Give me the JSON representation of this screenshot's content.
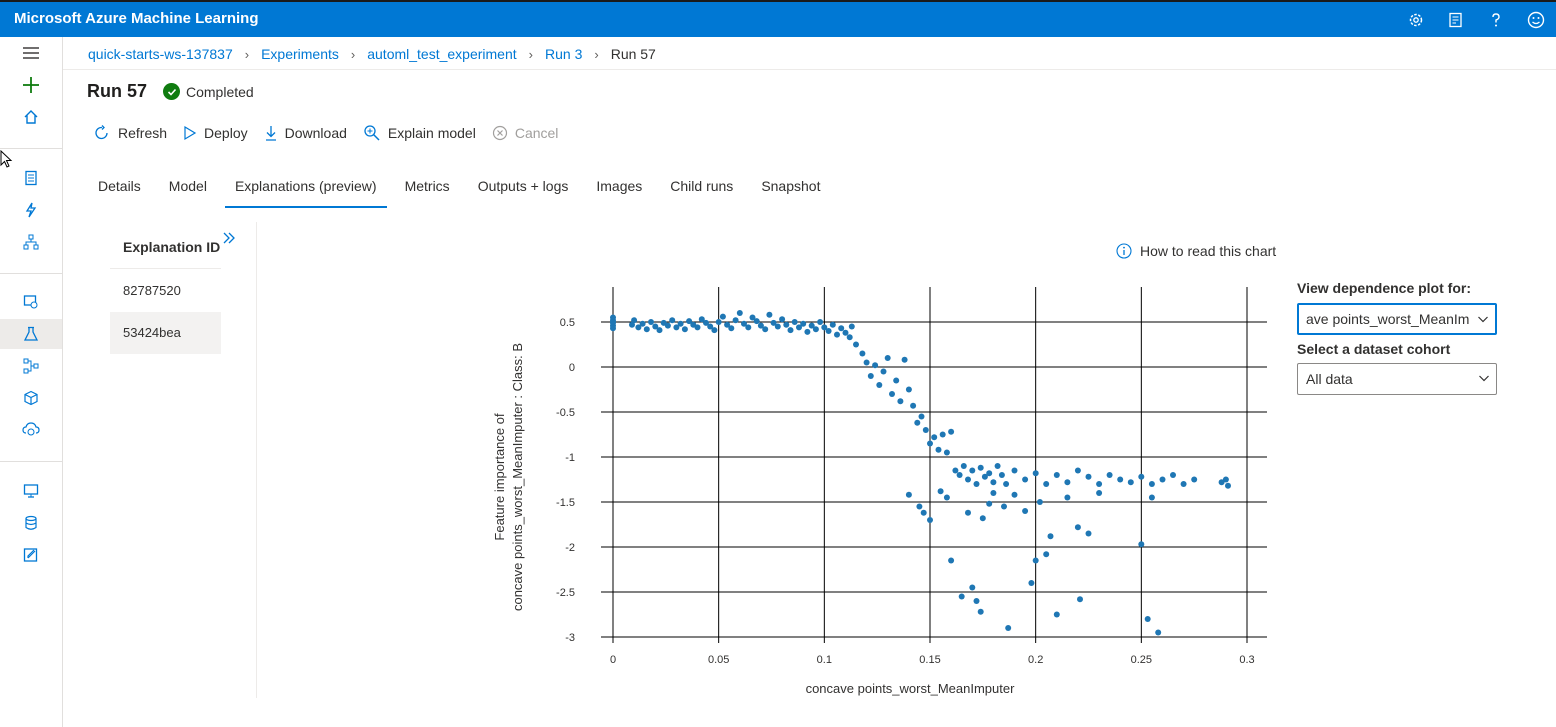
{
  "app": {
    "title": "Microsoft Azure Machine Learning"
  },
  "topbar": {
    "icons": [
      "gear-icon",
      "feedback-list-icon",
      "help-icon",
      "smiley-icon"
    ]
  },
  "leftnav": {
    "items": [
      "hamburger-icon",
      "plus-icon",
      "home-icon",
      "notebook-icon",
      "automl-icon",
      "designer-icon",
      "datasets-icon",
      "experiments-icon",
      "pipelines-icon",
      "models-icon",
      "endpoints-icon",
      "compute-icon",
      "datastores-icon",
      "labeling-icon"
    ],
    "active": "experiments-icon"
  },
  "breadcrumb": {
    "items": [
      "quick-starts-ws-137837",
      "Experiments",
      "automl_test_experiment",
      "Run 3"
    ],
    "current": "Run 57"
  },
  "run": {
    "title": "Run 57",
    "status": "Completed"
  },
  "toolbar": {
    "refresh": "Refresh",
    "deploy": "Deploy",
    "download": "Download",
    "explain": "Explain model",
    "cancel": "Cancel"
  },
  "tabs": [
    "Details",
    "Model",
    "Explanations (preview)",
    "Metrics",
    "Outputs + logs",
    "Images",
    "Child runs",
    "Snapshot"
  ],
  "active_tab": "Explanations (preview)",
  "explanations": {
    "header": "Explanation ID",
    "rows": [
      "82787520",
      "53424bea"
    ],
    "selected": "53424bea"
  },
  "how_to_read": "How to read this chart",
  "dependence": {
    "label": "View dependence plot for:",
    "value": "ave points_worst_MeanIm",
    "cohort_label": "Select a dataset cohort",
    "cohort_value": "All data"
  },
  "colors": {
    "accent": "#0078d4",
    "success": "#107c10",
    "point": "#1f77b4"
  },
  "chart_data": {
    "type": "scatter",
    "xlabel": "concave points_worst_MeanImputer",
    "ylabel_line1": "Feature importance of",
    "ylabel_line2": "concave points_worst_MeanImputer : Class: B",
    "xlim": [
      0,
      0.3
    ],
    "ylim": [
      -3,
      0.5
    ],
    "xticks": [
      "0",
      "0.05",
      "0.1",
      "0.15",
      "0.2",
      "0.25",
      "0.3"
    ],
    "yticks": [
      "0.5",
      "0",
      "-0.5",
      "-1",
      "-1.5",
      "-2",
      "-2.5",
      "-3"
    ],
    "grid": true,
    "points": [
      [
        0.0,
        0.55
      ],
      [
        0.0,
        0.52
      ],
      [
        0.0,
        0.49
      ],
      [
        0.0,
        0.46
      ],
      [
        0.0,
        0.43
      ],
      [
        0.0,
        0.5
      ],
      [
        0.009,
        0.47
      ],
      [
        0.01,
        0.52
      ],
      [
        0.012,
        0.44
      ],
      [
        0.014,
        0.48
      ],
      [
        0.016,
        0.42
      ],
      [
        0.018,
        0.5
      ],
      [
        0.02,
        0.45
      ],
      [
        0.022,
        0.41
      ],
      [
        0.024,
        0.49
      ],
      [
        0.026,
        0.46
      ],
      [
        0.028,
        0.52
      ],
      [
        0.03,
        0.44
      ],
      [
        0.032,
        0.48
      ],
      [
        0.034,
        0.42
      ],
      [
        0.036,
        0.51
      ],
      [
        0.038,
        0.47
      ],
      [
        0.04,
        0.44
      ],
      [
        0.042,
        0.53
      ],
      [
        0.044,
        0.49
      ],
      [
        0.046,
        0.45
      ],
      [
        0.048,
        0.41
      ],
      [
        0.05,
        0.5
      ],
      [
        0.052,
        0.56
      ],
      [
        0.054,
        0.47
      ],
      [
        0.056,
        0.43
      ],
      [
        0.058,
        0.52
      ],
      [
        0.06,
        0.6
      ],
      [
        0.062,
        0.48
      ],
      [
        0.064,
        0.44
      ],
      [
        0.066,
        0.55
      ],
      [
        0.068,
        0.51
      ],
      [
        0.07,
        0.46
      ],
      [
        0.072,
        0.42
      ],
      [
        0.074,
        0.58
      ],
      [
        0.076,
        0.49
      ],
      [
        0.078,
        0.45
      ],
      [
        0.08,
        0.53
      ],
      [
        0.082,
        0.47
      ],
      [
        0.084,
        0.41
      ],
      [
        0.086,
        0.5
      ],
      [
        0.088,
        0.44
      ],
      [
        0.09,
        0.48
      ],
      [
        0.092,
        0.39
      ],
      [
        0.094,
        0.46
      ],
      [
        0.096,
        0.42
      ],
      [
        0.098,
        0.5
      ],
      [
        0.1,
        0.44
      ],
      [
        0.102,
        0.4
      ],
      [
        0.104,
        0.47
      ],
      [
        0.106,
        0.36
      ],
      [
        0.108,
        0.43
      ],
      [
        0.11,
        0.38
      ],
      [
        0.112,
        0.33
      ],
      [
        0.113,
        0.45
      ],
      [
        0.115,
        0.25
      ],
      [
        0.118,
        0.15
      ],
      [
        0.12,
        0.05
      ],
      [
        0.122,
        -0.1
      ],
      [
        0.124,
        0.02
      ],
      [
        0.126,
        -0.2
      ],
      [
        0.128,
        -0.05
      ],
      [
        0.13,
        0.1
      ],
      [
        0.132,
        -0.3
      ],
      [
        0.134,
        -0.15
      ],
      [
        0.136,
        -0.38
      ],
      [
        0.138,
        0.08
      ],
      [
        0.14,
        -0.25
      ],
      [
        0.142,
        -0.43
      ],
      [
        0.144,
        -0.62
      ],
      [
        0.146,
        -0.55
      ],
      [
        0.148,
        -0.7
      ],
      [
        0.15,
        -0.85
      ],
      [
        0.152,
        -0.78
      ],
      [
        0.154,
        -0.92
      ],
      [
        0.156,
        -0.75
      ],
      [
        0.158,
        -0.95
      ],
      [
        0.16,
        -0.72
      ],
      [
        0.162,
        -1.15
      ],
      [
        0.164,
        -1.2
      ],
      [
        0.166,
        -1.1
      ],
      [
        0.168,
        -1.25
      ],
      [
        0.17,
        -1.15
      ],
      [
        0.172,
        -1.3
      ],
      [
        0.174,
        -1.12
      ],
      [
        0.176,
        -1.22
      ],
      [
        0.178,
        -1.18
      ],
      [
        0.18,
        -1.28
      ],
      [
        0.182,
        -1.1
      ],
      [
        0.184,
        -1.2
      ],
      [
        0.186,
        -1.3
      ],
      [
        0.19,
        -1.15
      ],
      [
        0.195,
        -1.25
      ],
      [
        0.2,
        -1.18
      ],
      [
        0.205,
        -1.3
      ],
      [
        0.21,
        -1.2
      ],
      [
        0.215,
        -1.28
      ],
      [
        0.22,
        -1.15
      ],
      [
        0.225,
        -1.22
      ],
      [
        0.23,
        -1.3
      ],
      [
        0.235,
        -1.2
      ],
      [
        0.24,
        -1.25
      ],
      [
        0.245,
        -1.28
      ],
      [
        0.25,
        -1.22
      ],
      [
        0.255,
        -1.3
      ],
      [
        0.26,
        -1.25
      ],
      [
        0.265,
        -1.2
      ],
      [
        0.27,
        -1.3
      ],
      [
        0.275,
        -1.25
      ],
      [
        0.288,
        -1.28
      ],
      [
        0.29,
        -1.25
      ],
      [
        0.291,
        -1.32
      ],
      [
        0.14,
        -1.42
      ],
      [
        0.145,
        -1.55
      ],
      [
        0.147,
        -1.62
      ],
      [
        0.15,
        -1.7
      ],
      [
        0.155,
        -1.38
      ],
      [
        0.158,
        -1.45
      ],
      [
        0.16,
        -2.15
      ],
      [
        0.165,
        -2.55
      ],
      [
        0.168,
        -1.62
      ],
      [
        0.17,
        -2.45
      ],
      [
        0.172,
        -2.6
      ],
      [
        0.174,
        -2.72
      ],
      [
        0.175,
        -1.68
      ],
      [
        0.178,
        -1.52
      ],
      [
        0.18,
        -1.4
      ],
      [
        0.185,
        -1.55
      ],
      [
        0.187,
        -2.9
      ],
      [
        0.19,
        -1.42
      ],
      [
        0.195,
        -1.6
      ],
      [
        0.198,
        -2.4
      ],
      [
        0.2,
        -2.15
      ],
      [
        0.202,
        -1.5
      ],
      [
        0.205,
        -2.08
      ],
      [
        0.207,
        -1.88
      ],
      [
        0.21,
        -2.75
      ],
      [
        0.215,
        -1.45
      ],
      [
        0.22,
        -1.78
      ],
      [
        0.221,
        -2.58
      ],
      [
        0.225,
        -1.85
      ],
      [
        0.23,
        -1.4
      ],
      [
        0.25,
        -1.97
      ],
      [
        0.253,
        -2.8
      ],
      [
        0.258,
        -2.95
      ],
      [
        0.255,
        -1.45
      ]
    ]
  }
}
